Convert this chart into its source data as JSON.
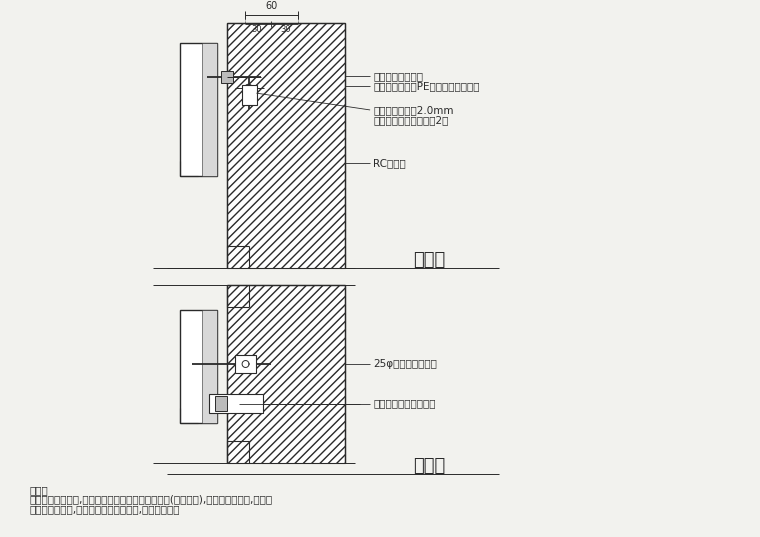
{
  "bg_color": "#f2f2ee",
  "line_color": "#2a2a2a",
  "title1": "立剖面",
  "title2": "平剖面",
  "note_title": "说明：",
  "note_line1": "承商装石材施作前,应依石材分割尺寸配置镀锌钢架(防扩处理),并提送结构分析,经甲方",
  "note_line2": "审查後方得施作,其费用已含於标单项目,不另行计价。",
  "label_t1": "镀锌钢质螺丝锁固",
  "label_t2": "填缝剂依缝发泡PE棒衬底（聚硫胶）",
  "label_t3": "不锈钢固定片厚2.0mm",
  "label_t4": "膨胀螺栓固定每片石板2尺",
  "label_t5": "RC或红砖",
  "label_b1": "25φ不锈钢水平扣件",
  "label_b2": "不锈钢固定片详立剖面",
  "dim_60": "60",
  "dim_30a": "30",
  "dim_30b": "30"
}
